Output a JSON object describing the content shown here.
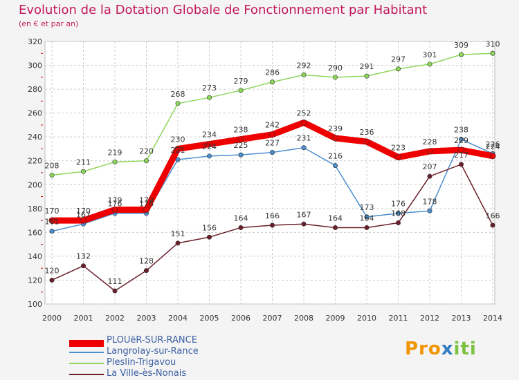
{
  "title": "Evolution de la Dotation Globale de Fonctionnement par Habitant",
  "subtitle": "(en € et par an)",
  "logo": "Proxiti",
  "chart_data": {
    "type": "line",
    "title": "Evolution de la Dotation Globale de Fonctionnement par Habitant",
    "subtitle": "(en € et par an)",
    "xlabel": "",
    "ylabel": "",
    "x": [
      "2000",
      "2001",
      "2002",
      "2003",
      "2004",
      "2005",
      "2006",
      "2007",
      "2008",
      "2009",
      "2010",
      "2011",
      "2012",
      "2013",
      "2014"
    ],
    "ylim": [
      100,
      320
    ],
    "yticks": [
      100,
      120,
      140,
      160,
      180,
      200,
      220,
      240,
      260,
      280,
      300,
      320
    ],
    "grid": true,
    "legend_position": "bottom-left",
    "series": [
      {
        "name": "Langrolay-sur-Rance",
        "color": "#4a8fcf",
        "values": [
          161,
          167,
          176,
          176,
          221,
          224,
          225,
          227,
          231,
          216,
          173,
          176,
          178,
          238,
          226
        ]
      },
      {
        "name": "Pleslin-Trigavou",
        "color": "#8cd65a",
        "values": [
          208,
          211,
          219,
          220,
          268,
          273,
          279,
          286,
          292,
          290,
          291,
          297,
          301,
          309,
          310
        ]
      },
      {
        "name": "La Ville-ès-Nonais",
        "color": "#6b1f2a",
        "values": [
          120,
          132,
          111,
          128,
          151,
          156,
          164,
          166,
          167,
          164,
          164,
          168,
          207,
          217,
          166
        ]
      },
      {
        "name": "PLOUëR-SUR-RANCE",
        "color": "#ee0000",
        "values": [
          170,
          170,
          179,
          179,
          230,
          234,
          238,
          242,
          252,
          239,
          236,
          223,
          228,
          229,
          224
        ]
      }
    ],
    "data_labels": [
      {
        "series": "Langrolay-sur-Rance",
        "labels": [
          "161",
          "167",
          "176",
          "176",
          "221",
          "224",
          "225",
          "227",
          "231",
          "216",
          "173",
          "176",
          "178",
          "238",
          "226"
        ]
      },
      {
        "series": "Pleslin-Trigavou",
        "labels": [
          "208",
          "211",
          "219",
          "220",
          "268",
          "273",
          "279",
          "286",
          "292",
          "290",
          "291",
          "297",
          "301",
          "309",
          "310"
        ]
      },
      {
        "series": "La Ville-ès-Nonais",
        "labels": [
          "120",
          "132",
          "111",
          "128",
          "151",
          "156",
          "164",
          "166",
          "167",
          "164",
          "164",
          "168",
          "207",
          "217",
          "166"
        ]
      },
      {
        "series": "PLOUëR-SUR-RANCE",
        "labels": [
          "170",
          "170",
          "179",
          "179",
          "230",
          "234",
          "238",
          "242",
          "252",
          "239",
          "236",
          "223",
          "228",
          "229",
          "224"
        ]
      }
    ],
    "legend": [
      "PLOUëR-SUR-RANCE",
      "Langrolay-sur-Rance",
      "Pleslin-Trigavou",
      "La Ville-ès-Nonais"
    ]
  }
}
